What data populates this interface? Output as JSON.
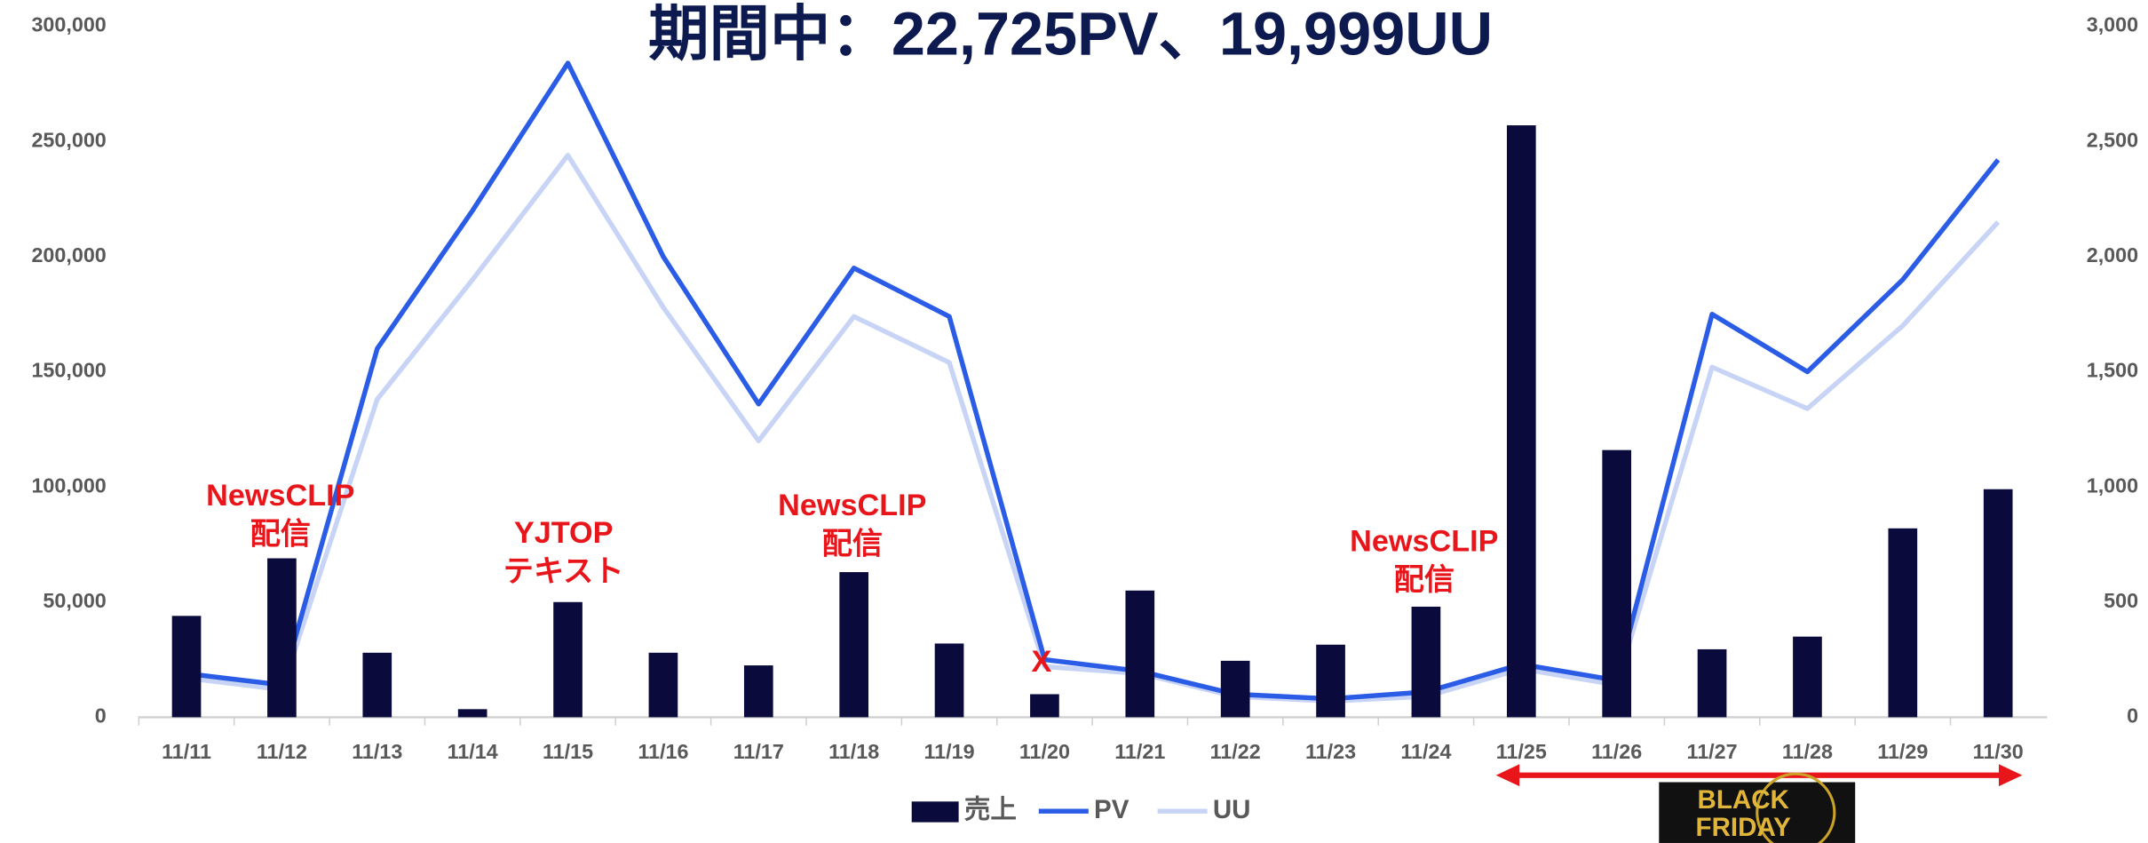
{
  "chart_data": {
    "type": "bar-line",
    "title": "期間中：22,725PV、19,999UU",
    "categories": [
      "11/11",
      "11/12",
      "11/13",
      "11/14",
      "11/15",
      "11/16",
      "11/17",
      "11/18",
      "11/19",
      "11/20",
      "11/21",
      "11/22",
      "11/23",
      "11/24",
      "11/25",
      "11/26",
      "11/27",
      "11/28",
      "11/29",
      "11/30"
    ],
    "series": [
      {
        "name": "売上",
        "type": "bar",
        "color": "#0a0a3c",
        "values": [
          44000,
          69000,
          28000,
          3500,
          50000,
          28000,
          22500,
          63000,
          32000,
          10000,
          55000,
          24500,
          31500,
          48000,
          257000,
          116000,
          29500,
          35000,
          82000,
          99000
        ]
      },
      {
        "name": "PV",
        "type": "line",
        "axis": "y2",
        "color": "#2a5ce6",
        "values": [
          190,
          140,
          1600,
          2200,
          2840,
          2000,
          1360,
          1950,
          1740,
          250,
          200,
          100,
          80,
          110,
          230,
          160,
          1750,
          1500,
          1900,
          2420
        ]
      },
      {
        "name": "UU",
        "type": "line",
        "axis": "y2",
        "color": "#c8d4f5",
        "values": [
          170,
          120,
          1380,
          1900,
          2440,
          1780,
          1200,
          1740,
          1540,
          220,
          190,
          90,
          70,
          90,
          210,
          140,
          1520,
          1340,
          1700,
          2150
        ]
      }
    ],
    "ylim": [
      0,
      300000
    ],
    "yticks": [
      {
        "value": 0,
        "label": "0"
      },
      {
        "value": 50000,
        "label": "50,000"
      },
      {
        "value": 100000,
        "label": "100,000"
      },
      {
        "value": 150000,
        "label": "150,000"
      },
      {
        "value": 200000,
        "label": "200,000"
      },
      {
        "value": 250000,
        "label": "250,000"
      },
      {
        "value": 300000,
        "label": "300,000"
      }
    ],
    "y2lim": [
      0,
      3000
    ],
    "y2ticks": [
      {
        "value": 0,
        "label": "0"
      },
      {
        "value": 500,
        "label": "500"
      },
      {
        "value": 1000,
        "label": "1,000"
      },
      {
        "value": 1500,
        "label": "1,500"
      },
      {
        "value": 2000,
        "label": "2,000"
      },
      {
        "value": 2500,
        "label": "2,500"
      },
      {
        "value": 3000,
        "label": "3,000"
      }
    ],
    "grid": false,
    "legend": "bottom",
    "annotations": [
      {
        "lines": [
          "NewsCLIP",
          "配信"
        ]
      },
      {
        "lines": [
          "YJTOP",
          "テキスト"
        ]
      },
      {
        "lines": [
          "NewsCLIP",
          "配信"
        ]
      },
      {
        "lines": [
          "X"
        ]
      },
      {
        "lines": [
          "NewsCLIP",
          "配信"
        ]
      }
    ],
    "badge": [
      "BLACK",
      "FRIDAY"
    ]
  }
}
